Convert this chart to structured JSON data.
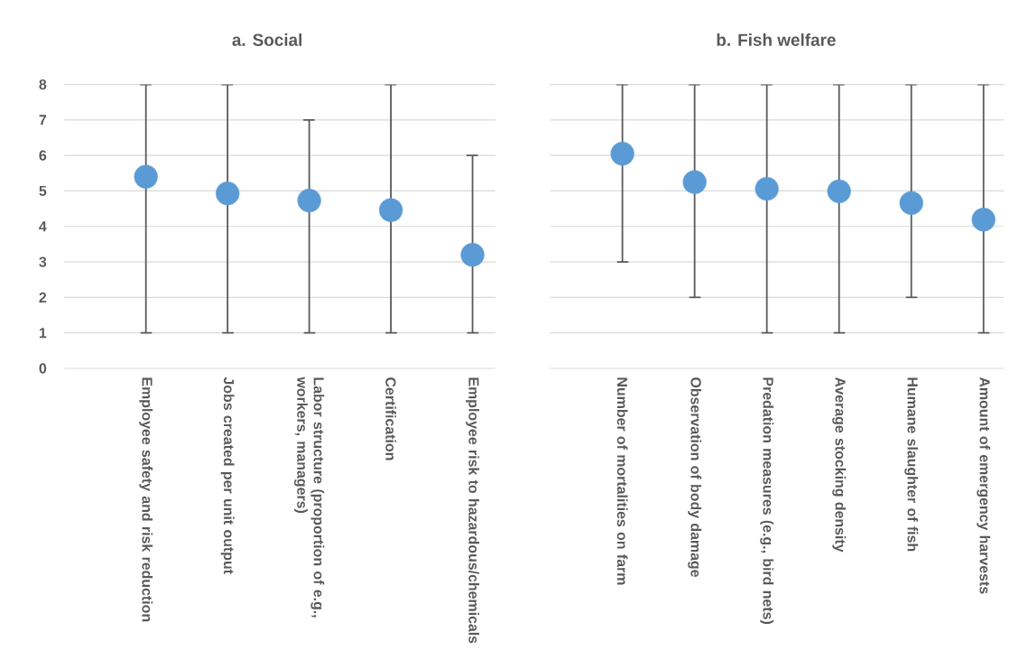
{
  "chart_data": [
    {
      "type": "scatter",
      "title": "a. Social",
      "categories": [
        "Employee safety and risk reduction",
        "Jobs created per unit output",
        "Labor structure (proportion of e.g., workers, managers)",
        "Certification",
        "Employee risk to hazardous/chemicals"
      ],
      "values": [
        5.4,
        4.93,
        4.73,
        4.46,
        3.2
      ],
      "errors": [
        [
          1,
          8
        ],
        [
          1,
          8
        ],
        [
          1,
          7
        ],
        [
          1,
          8
        ],
        [
          1,
          6
        ]
      ],
      "color": "#5b9bd5",
      "ylim": [
        0,
        8
      ],
      "yticks": [
        0,
        1,
        2,
        3,
        4,
        5,
        6,
        7,
        8
      ],
      "grid": "y",
      "marker": "circle"
    },
    {
      "type": "scatter",
      "title": "b. Fish welfare",
      "categories": [
        "Number of mortalities on farm",
        "Observation of body damage",
        "Predation measures (e.g., bird nets)",
        "Average stocking density",
        "Humane slaughter of fish",
        "Amount of emergency harvests"
      ],
      "values": [
        6.05,
        5.25,
        5.06,
        4.99,
        4.66,
        4.19
      ],
      "errors": [
        [
          3,
          8
        ],
        [
          2,
          8
        ],
        [
          1,
          8
        ],
        [
          1,
          8
        ],
        [
          2,
          8
        ],
        [
          1,
          8
        ]
      ],
      "color": "#5b9bd5",
      "ylim": [
        0,
        8
      ],
      "yticks": [
        0,
        1,
        2,
        3,
        4,
        5,
        6,
        7,
        8
      ],
      "grid": "y",
      "marker": "circle",
      "tick_labels": "x"
    }
  ]
}
